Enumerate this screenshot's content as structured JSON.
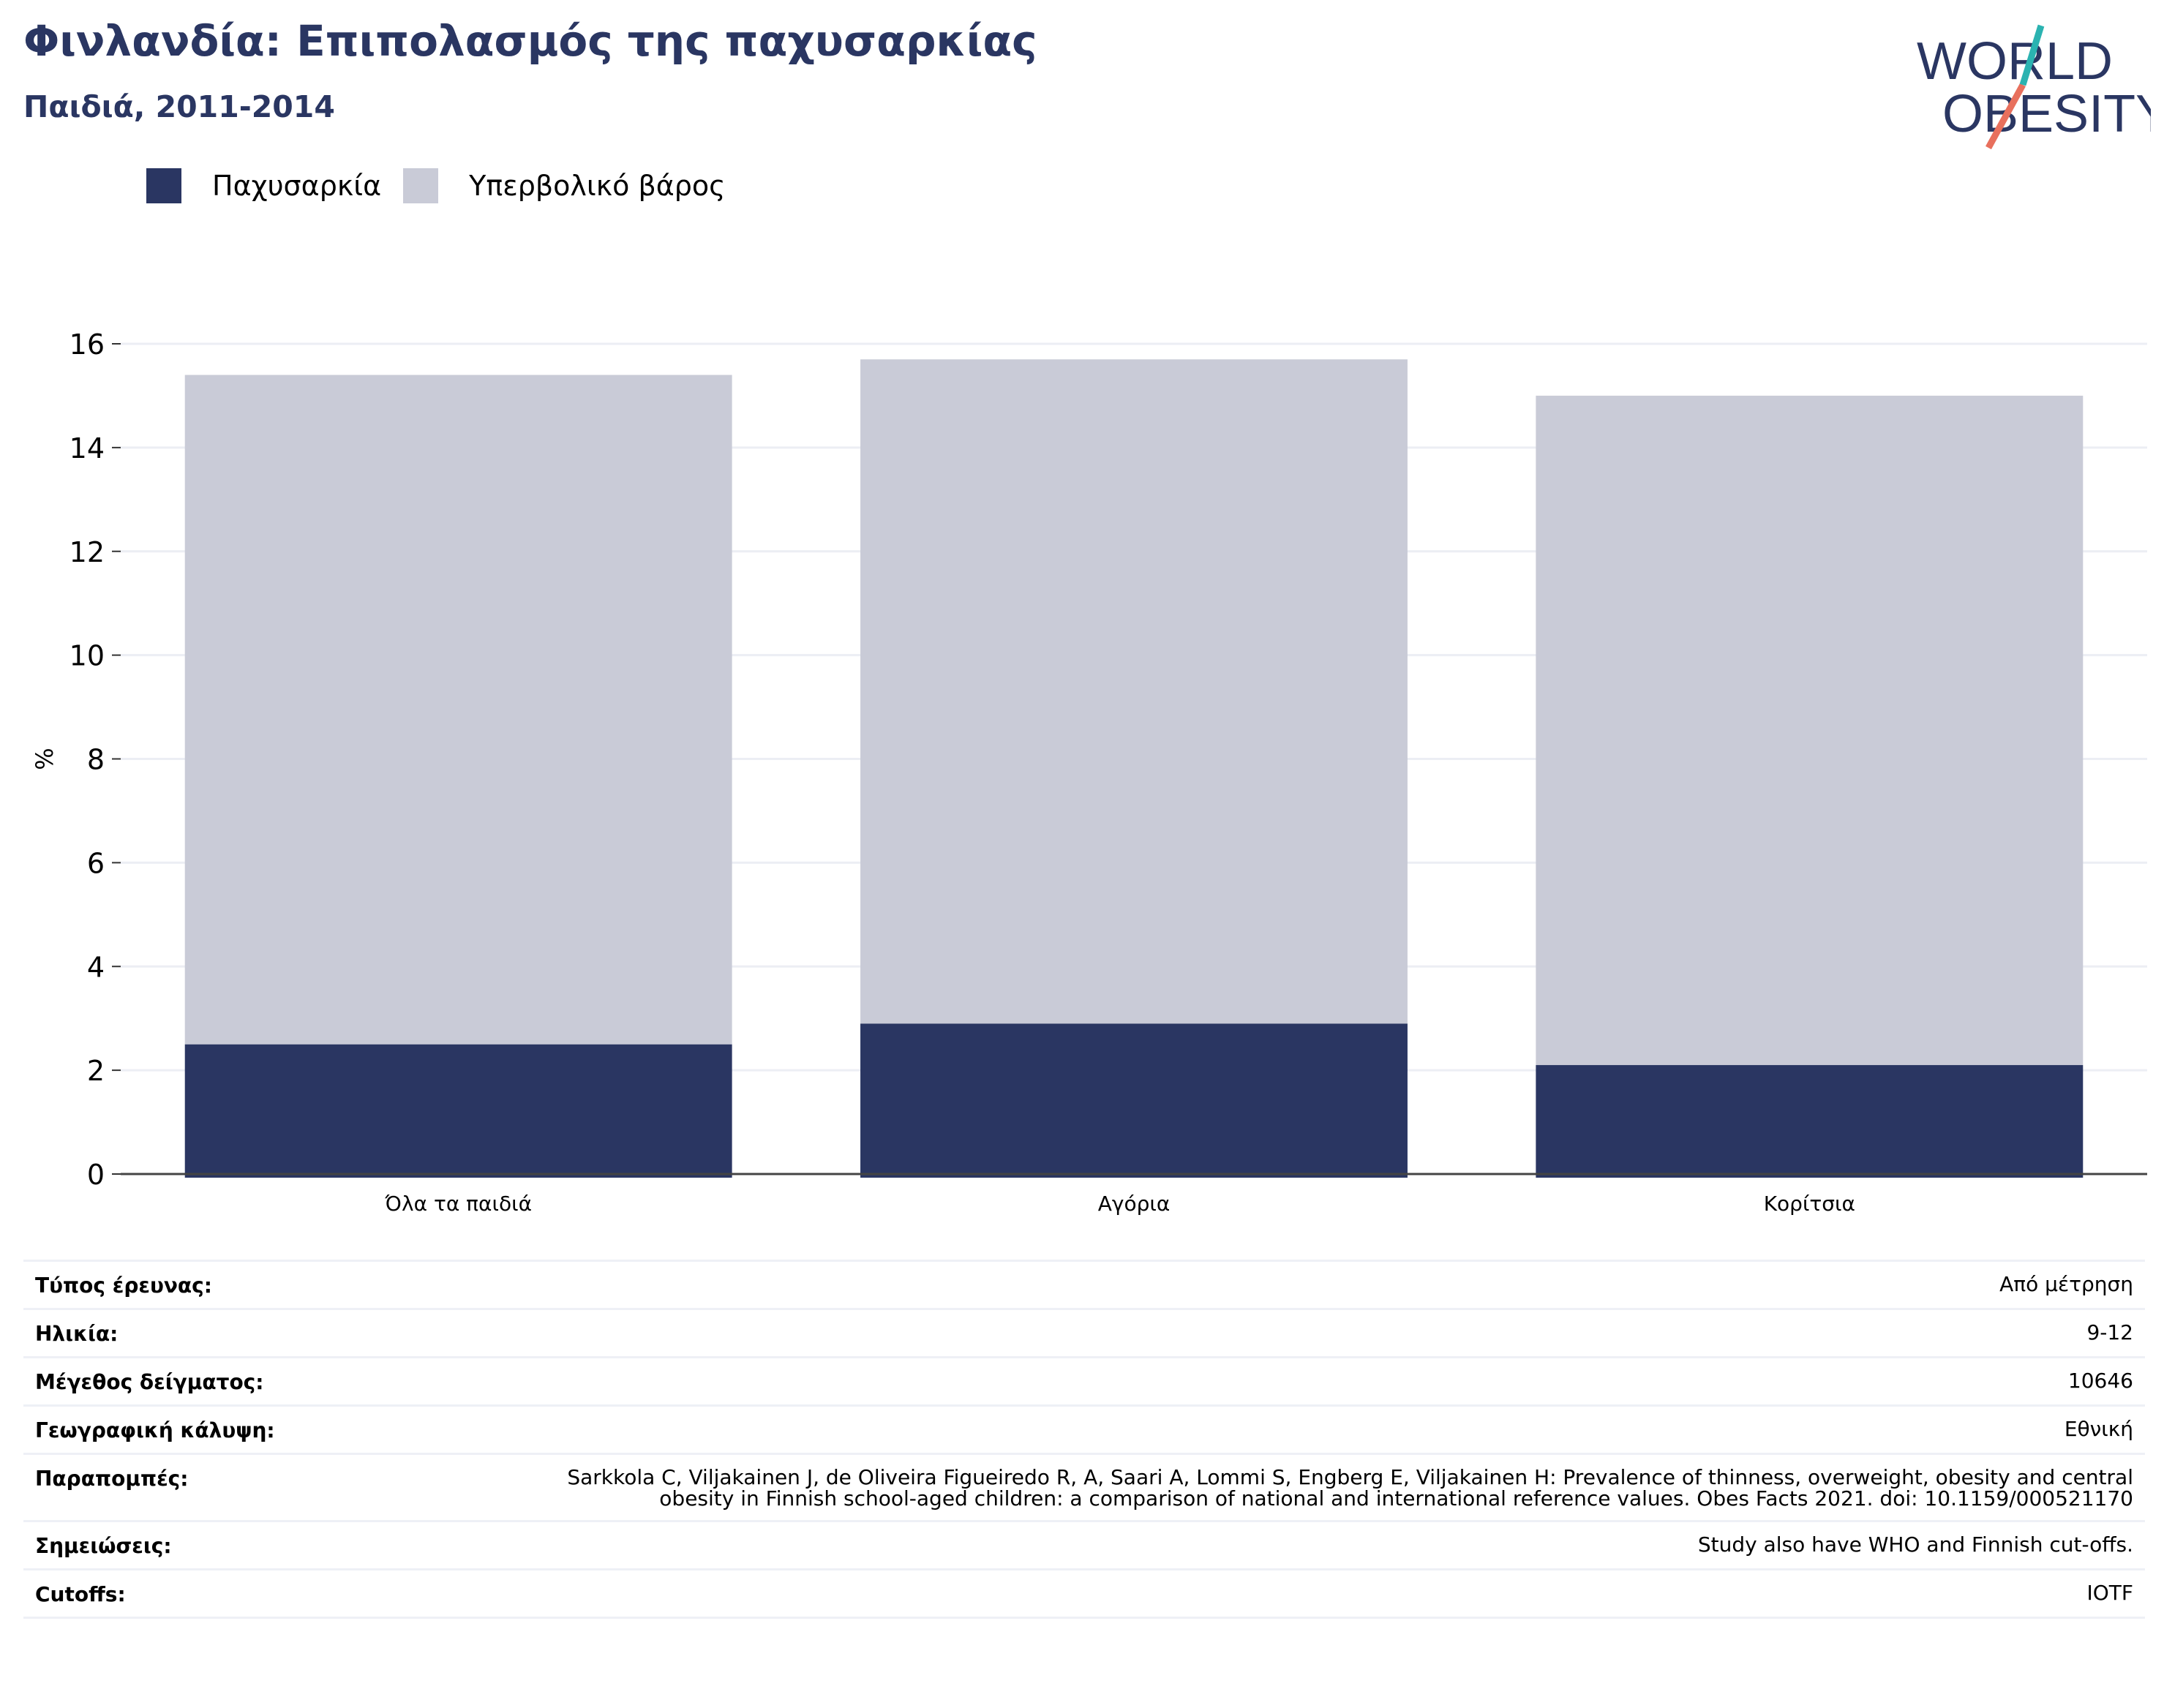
{
  "header": {
    "title": "Φινλανδία: Επιπολασμός της παχυσαρκίας",
    "subtitle": "Παιδιά, 2011-2014"
  },
  "logo": {
    "line1": "WORLD",
    "line2": "OBESITY",
    "colors": {
      "text": "#2a3662",
      "accent_teal": "#2bb3b1",
      "accent_coral": "#e8705d"
    }
  },
  "legend": [
    {
      "label": "Παχυσαρκία",
      "color": "#2a3662"
    },
    {
      "label": "Υπερβολικό βάρος",
      "color": "#c9cbd7"
    }
  ],
  "chart_data": {
    "type": "bar",
    "stacked": true,
    "categories": [
      "Όλα τα παιδιά",
      "Αγόρια",
      "Κορίτσια"
    ],
    "series": [
      {
        "name": "Παχυσαρκία",
        "values": [
          2.5,
          2.9,
          2.1
        ],
        "color": "#2a3662"
      },
      {
        "name": "Υπερβολικό βάρος",
        "values": [
          12.9,
          12.8,
          12.9
        ],
        "color": "#c9cbd7"
      }
    ],
    "ylabel": "%",
    "xlabel": "",
    "ylim": [
      0,
      16
    ],
    "yticks": [
      0,
      2,
      4,
      6,
      8,
      10,
      12,
      14,
      16
    ],
    "grid": true,
    "legend_position": "top-left"
  },
  "info": [
    {
      "label": "Τύπος έρευνας:",
      "value": "Από μέτρηση"
    },
    {
      "label": "Ηλικία:",
      "value": "9-12"
    },
    {
      "label": "Μέγεθος δείγματος:",
      "value": "10646"
    },
    {
      "label": "Γεωγραφική κάλυψη:",
      "value": "Εθνική"
    },
    {
      "label": "Παραπομπές:",
      "value": "Sarkkola C, Viljakainen J, de Oliveira Figueiredo R, A, Saari A, Lommi S, Engberg E, Viljakainen H: Prevalence of thinness, overweight, obesity and central obesity in Finnish school-aged children: a comparison of national and international reference values. Obes Facts 2021. doi: 10.1159/000521170"
    },
    {
      "label": "Σημειώσεις:",
      "value": "Study also have WHO and Finnish cut-offs."
    },
    {
      "label": "Cutoffs:",
      "value": "IOTF"
    }
  ]
}
